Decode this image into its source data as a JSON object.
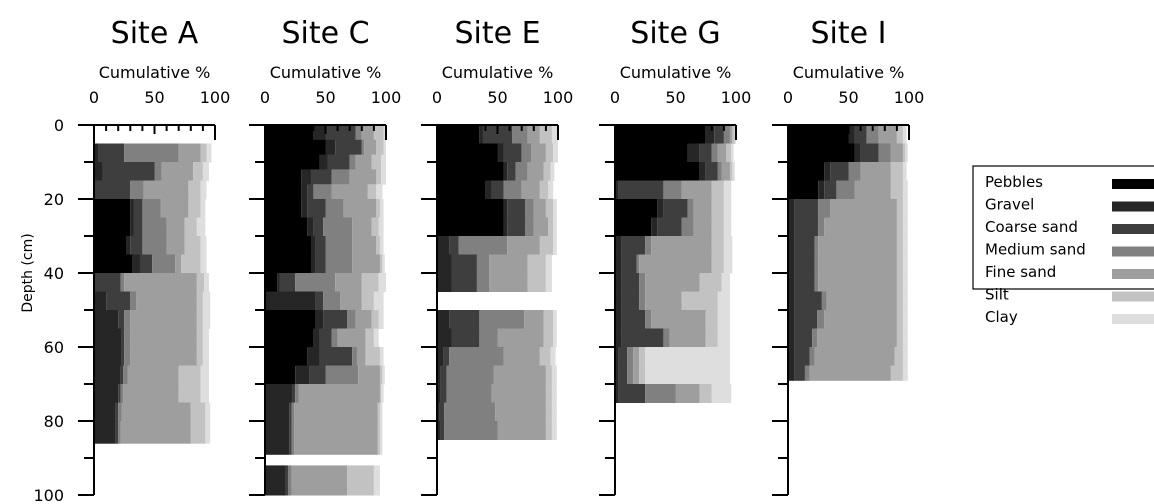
{
  "chart_data": {
    "type": "stacked-sediment-profile",
    "ylabel": "Depth (cm)",
    "xlabel": "Cumulative %",
    "y_ticks": [
      0,
      20,
      40,
      60,
      80,
      100
    ],
    "x_ticks": [
      0,
      50,
      100
    ],
    "ylim": [
      0,
      100
    ],
    "xlim": [
      0,
      100
    ],
    "categories": [
      "Pebbles",
      "Gravel",
      "Coarse sand",
      "Medium sand",
      "Fine sand",
      "Silt",
      "Clay"
    ],
    "colors": [
      "#000000",
      "#262626",
      "#3e3e3e",
      "#808080",
      "#9e9e9e",
      "#c2c2c2",
      "#dedede"
    ],
    "sites": [
      {
        "name": "Site A",
        "layers": [
          {
            "top": 5,
            "bottom": 10,
            "cum": [
              0,
              4,
              25,
              70,
              88,
              93,
              97
            ]
          },
          {
            "top": 10,
            "bottom": 15,
            "cum": [
              0,
              7,
              50,
              56,
              82,
              90,
              95
            ]
          },
          {
            "top": 15,
            "bottom": 20,
            "cum": [
              0,
              0,
              30,
              41,
              78,
              88,
              93
            ]
          },
          {
            "top": 20,
            "bottom": 25,
            "cum": [
              30,
              33,
              40,
              55,
              78,
              88,
              92
            ]
          },
          {
            "top": 25,
            "bottom": 30,
            "cum": [
              30,
              33,
              40,
              60,
              75,
              85,
              92
            ]
          },
          {
            "top": 30,
            "bottom": 35,
            "cum": [
              27,
              30,
              40,
              60,
              75,
              88,
              93
            ]
          },
          {
            "top": 35,
            "bottom": 40,
            "cum": [
              32,
              38,
              48,
              67,
              72,
              88,
              93
            ]
          },
          {
            "top": 40,
            "bottom": 45,
            "cum": [
              0,
              0,
              22,
              25,
              85,
              91,
              95
            ]
          },
          {
            "top": 45,
            "bottom": 50,
            "cum": [
              0,
              10,
              30,
              35,
              85,
              90,
              96
            ]
          },
          {
            "top": 50,
            "bottom": 55,
            "cum": [
              0,
              20,
              25,
              30,
              85,
              90,
              96
            ]
          },
          {
            "top": 55,
            "bottom": 60,
            "cum": [
              0,
              23,
              25,
              30,
              85,
              90,
              95
            ]
          },
          {
            "top": 60,
            "bottom": 65,
            "cum": [
              0,
              23,
              25,
              30,
              85,
              90,
              95
            ]
          },
          {
            "top": 65,
            "bottom": 70,
            "cum": [
              0,
              22,
              24,
              28,
              70,
              88,
              95
            ]
          },
          {
            "top": 70,
            "bottom": 75,
            "cum": [
              0,
              20,
              22,
              24,
              70,
              88,
              95
            ]
          },
          {
            "top": 75,
            "bottom": 80,
            "cum": [
              0,
              18,
              20,
              23,
              80,
              92,
              96
            ]
          },
          {
            "top": 80,
            "bottom": 86,
            "cum": [
              0,
              18,
              20,
              22,
              80,
              92,
              96
            ]
          }
        ]
      },
      {
        "name": "Site C",
        "layers": [
          {
            "top": 0,
            "bottom": 4,
            "cum": [
              40,
              50,
              75,
              80,
              90,
              98,
              100
            ]
          },
          {
            "top": 4,
            "bottom": 8,
            "cum": [
              50,
              58,
              80,
              82,
              92,
              98,
              100
            ]
          },
          {
            "top": 8,
            "bottom": 12,
            "cum": [
              45,
              52,
              70,
              75,
              88,
              96,
              100
            ]
          },
          {
            "top": 12,
            "bottom": 16,
            "cum": [
              30,
              38,
              55,
              70,
              92,
              96,
              100
            ]
          },
          {
            "top": 16,
            "bottom": 20,
            "cum": [
              30,
              35,
              40,
              55,
              85,
              92,
              97
            ]
          },
          {
            "top": 20,
            "bottom": 25,
            "cum": [
              30,
              35,
              50,
              65,
              92,
              95,
              98
            ]
          },
          {
            "top": 25,
            "bottom": 30,
            "cum": [
              35,
              40,
              48,
              72,
              88,
              94,
              98
            ]
          },
          {
            "top": 30,
            "bottom": 35,
            "cum": [
              38,
              42,
              50,
              72,
              92,
              95,
              98
            ]
          },
          {
            "top": 35,
            "bottom": 40,
            "cum": [
              38,
              42,
              50,
              72,
              95,
              97,
              99
            ]
          },
          {
            "top": 40,
            "bottom": 45,
            "cum": [
              10,
              12,
              25,
              58,
              80,
              94,
              100
            ]
          },
          {
            "top": 45,
            "bottom": 50,
            "cum": [
              0,
              42,
              48,
              62,
              80,
              90,
              98
            ]
          },
          {
            "top": 50,
            "bottom": 55,
            "cum": [
              42,
              48,
              68,
              75,
              88,
              94,
              98
            ]
          },
          {
            "top": 55,
            "bottom": 60,
            "cum": [
              40,
              45,
              55,
              60,
              83,
              90,
              94
            ]
          },
          {
            "top": 60,
            "bottom": 65,
            "cum": [
              35,
              45,
              72,
              76,
              83,
              95,
              98
            ]
          },
          {
            "top": 65,
            "bottom": 70,
            "cum": [
              25,
              37,
              50,
              77,
              95,
              97,
              99
            ]
          },
          {
            "top": 70,
            "bottom": 75,
            "cum": [
              0,
              23,
              25,
              28,
              95,
              96,
              98
            ]
          },
          {
            "top": 75,
            "bottom": 80,
            "cum": [
              0,
              20,
              22,
              24,
              93,
              95,
              97
            ]
          },
          {
            "top": 80,
            "bottom": 89,
            "cum": [
              0,
              20,
              22,
              24,
              93,
              95,
              97
            ]
          },
          {
            "top": 92,
            "bottom": 100,
            "cum": [
              0,
              17,
              19,
              22,
              68,
              90,
              95
            ]
          }
        ]
      },
      {
        "name": "Site E",
        "layers": [
          {
            "top": 0,
            "bottom": 5,
            "cum": [
              35,
              38,
              62,
              75,
              85,
              95,
              100
            ]
          },
          {
            "top": 5,
            "bottom": 10,
            "cum": [
              50,
              55,
              70,
              78,
              90,
              96,
              100
            ]
          },
          {
            "top": 10,
            "bottom": 15,
            "cum": [
              55,
              58,
              65,
              75,
              88,
              94,
              97
            ]
          },
          {
            "top": 15,
            "bottom": 20,
            "cum": [
              40,
              45,
              55,
              70,
              85,
              92,
              96
            ]
          },
          {
            "top": 20,
            "bottom": 25,
            "cum": [
              55,
              58,
              73,
              80,
              90,
              96,
              99
            ]
          },
          {
            "top": 25,
            "bottom": 30,
            "cum": [
              55,
              58,
              73,
              80,
              92,
              96,
              99
            ]
          },
          {
            "top": 30,
            "bottom": 35,
            "cum": [
              0,
              10,
              18,
              58,
              85,
              96,
              99
            ]
          },
          {
            "top": 35,
            "bottom": 40,
            "cum": [
              0,
              12,
              33,
              43,
              75,
              90,
              95
            ]
          },
          {
            "top": 40,
            "bottom": 45,
            "cum": [
              0,
              12,
              33,
              43,
              75,
              90,
              95
            ]
          },
          {
            "top": 50,
            "bottom": 55,
            "cum": [
              0,
              10,
              35,
              72,
              88,
              96,
              99
            ]
          },
          {
            "top": 55,
            "bottom": 60,
            "cum": [
              0,
              12,
              35,
              50,
              88,
              96,
              99
            ]
          },
          {
            "top": 60,
            "bottom": 65,
            "cum": [
              0,
              5,
              10,
              55,
              85,
              94,
              98
            ]
          },
          {
            "top": 65,
            "bottom": 70,
            "cum": [
              0,
              3,
              8,
              47,
              90,
              95,
              99
            ]
          },
          {
            "top": 70,
            "bottom": 75,
            "cum": [
              0,
              3,
              8,
              45,
              90,
              95,
              99
            ]
          },
          {
            "top": 75,
            "bottom": 80,
            "cum": [
              0,
              2,
              6,
              48,
              90,
              95,
              99
            ]
          },
          {
            "top": 80,
            "bottom": 85,
            "cum": [
              0,
              3,
              6,
              50,
              90,
              95,
              99
            ]
          }
        ]
      },
      {
        "name": "Site G",
        "layers": [
          {
            "top": 0,
            "bottom": 5,
            "cum": [
              75,
              82,
              90,
              95,
              97,
              99,
              100
            ]
          },
          {
            "top": 5,
            "bottom": 10,
            "cum": [
              60,
              70,
              80,
              85,
              92,
              96,
              98
            ]
          },
          {
            "top": 10,
            "bottom": 15,
            "cum": [
              70,
              75,
              85,
              88,
              95,
              97,
              99
            ]
          },
          {
            "top": 15,
            "bottom": 20,
            "cum": [
              0,
              3,
              40,
              55,
              80,
              90,
              96
            ]
          },
          {
            "top": 20,
            "bottom": 25,
            "cum": [
              35,
              40,
              60,
              65,
              80,
              90,
              96
            ]
          },
          {
            "top": 25,
            "bottom": 30,
            "cum": [
              30,
              35,
              55,
              65,
              80,
              90,
              96
            ]
          },
          {
            "top": 30,
            "bottom": 35,
            "cum": [
              0,
              5,
              25,
              30,
              80,
              90,
              97
            ]
          },
          {
            "top": 35,
            "bottom": 40,
            "cum": [
              0,
              5,
              18,
              20,
              80,
              90,
              97
            ]
          },
          {
            "top": 40,
            "bottom": 45,
            "cum": [
              0,
              5,
              20,
              25,
              70,
              88,
              95
            ]
          },
          {
            "top": 45,
            "bottom": 50,
            "cum": [
              0,
              5,
              20,
              25,
              55,
              85,
              95
            ]
          },
          {
            "top": 50,
            "bottom": 55,
            "cum": [
              0,
              5,
              25,
              30,
              75,
              85,
              95
            ]
          },
          {
            "top": 55,
            "bottom": 60,
            "cum": [
              0,
              5,
              40,
              45,
              75,
              85,
              95
            ]
          },
          {
            "top": 60,
            "bottom": 65,
            "cum": [
              0,
              3,
              10,
              15,
              20,
              25,
              95
            ]
          },
          {
            "top": 65,
            "bottom": 70,
            "cum": [
              0,
              3,
              10,
              15,
              20,
              25,
              95
            ]
          },
          {
            "top": 70,
            "bottom": 75,
            "cum": [
              0,
              3,
              25,
              50,
              70,
              80,
              96
            ]
          }
        ]
      },
      {
        "name": "Site I",
        "layers": [
          {
            "top": 0,
            "bottom": 5,
            "cum": [
              50,
              55,
              65,
              75,
              90,
              95,
              98
            ]
          },
          {
            "top": 5,
            "bottom": 10,
            "cum": [
              55,
              60,
              75,
              85,
              95,
              97,
              99
            ]
          },
          {
            "top": 10,
            "bottom": 15,
            "cum": [
              30,
              35,
              50,
              60,
              85,
              95,
              98
            ]
          },
          {
            "top": 15,
            "bottom": 20,
            "cum": [
              25,
              30,
              40,
              55,
              85,
              95,
              99
            ]
          },
          {
            "top": 20,
            "bottom": 25,
            "cum": [
              0,
              5,
              25,
              35,
              90,
              95,
              99
            ]
          },
          {
            "top": 25,
            "bottom": 30,
            "cum": [
              0,
              5,
              25,
              30,
              90,
              95,
              99
            ]
          },
          {
            "top": 30,
            "bottom": 35,
            "cum": [
              0,
              5,
              22,
              25,
              90,
              95,
              99
            ]
          },
          {
            "top": 35,
            "bottom": 40,
            "cum": [
              0,
              5,
              22,
              25,
              90,
              95,
              99
            ]
          },
          {
            "top": 40,
            "bottom": 45,
            "cum": [
              0,
              5,
              22,
              25,
              90,
              95,
              99
            ]
          },
          {
            "top": 45,
            "bottom": 50,
            "cum": [
              0,
              5,
              28,
              32,
              90,
              95,
              99
            ]
          },
          {
            "top": 50,
            "bottom": 55,
            "cum": [
              0,
              5,
              24,
              30,
              90,
              95,
              99
            ]
          },
          {
            "top": 55,
            "bottom": 60,
            "cum": [
              0,
              5,
              20,
              24,
              90,
              95,
              99
            ]
          },
          {
            "top": 60,
            "bottom": 65,
            "cum": [
              0,
              5,
              18,
              22,
              88,
              95,
              99
            ]
          },
          {
            "top": 65,
            "bottom": 69,
            "cum": [
              0,
              5,
              14,
              18,
              85,
              95,
              99
            ]
          }
        ]
      }
    ]
  }
}
